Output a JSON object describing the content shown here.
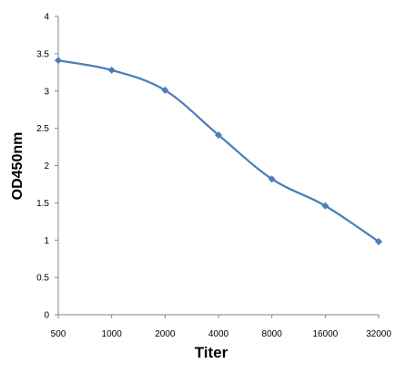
{
  "chart_data": {
    "type": "line",
    "xlabel": "Titer",
    "ylabel": "OD450nm",
    "categories": [
      "500",
      "1000",
      "2000",
      "4000",
      "8000",
      "16000",
      "32000"
    ],
    "series": [
      {
        "values": [
          3.41,
          3.28,
          3.01,
          2.41,
          1.82,
          1.46,
          0.98
        ]
      }
    ],
    "ylim": [
      0,
      4
    ],
    "yticks": [
      "0",
      "0.5",
      "1",
      "1.5",
      "2",
      "2.5",
      "3",
      "3.5",
      "4"
    ],
    "grid": false,
    "legend": "none",
    "line_color": "#4A7EBB",
    "marker": "diamond"
  }
}
